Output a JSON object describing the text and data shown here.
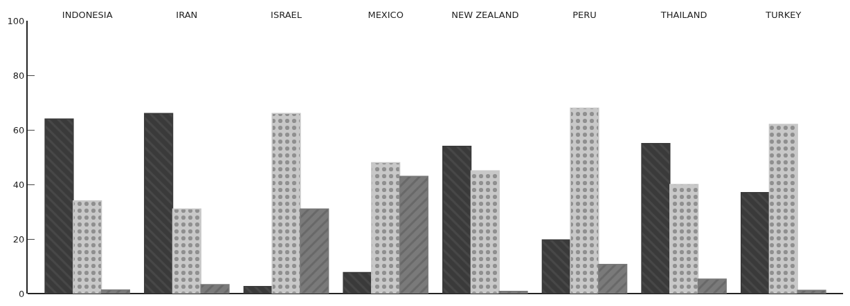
{
  "chart_data": {
    "type": "bar",
    "categories": [
      "INDONESIA",
      "IRAN",
      "ISRAEL",
      "MEXICO",
      "NEW ZEALAND",
      "PERU",
      "THAILAND",
      "TURKEY"
    ],
    "series": [
      {
        "color": "#3a3a3a",
        "values": [
          64,
          66,
          2.6,
          7.7,
          54,
          19.7,
          55,
          37
        ]
      },
      {
        "color": "#c8c8c8",
        "values": [
          34,
          31,
          66,
          48,
          45,
          68,
          40,
          62
        ]
      },
      {
        "color": "#7a7a7a",
        "values": [
          1.3,
          3.3,
          31,
          43,
          0.8,
          10.7,
          5.3,
          1.2
        ]
      }
    ],
    "ylim": [
      0,
      100
    ],
    "yticks": [
      0,
      20,
      40,
      60,
      80,
      100
    ]
  }
}
